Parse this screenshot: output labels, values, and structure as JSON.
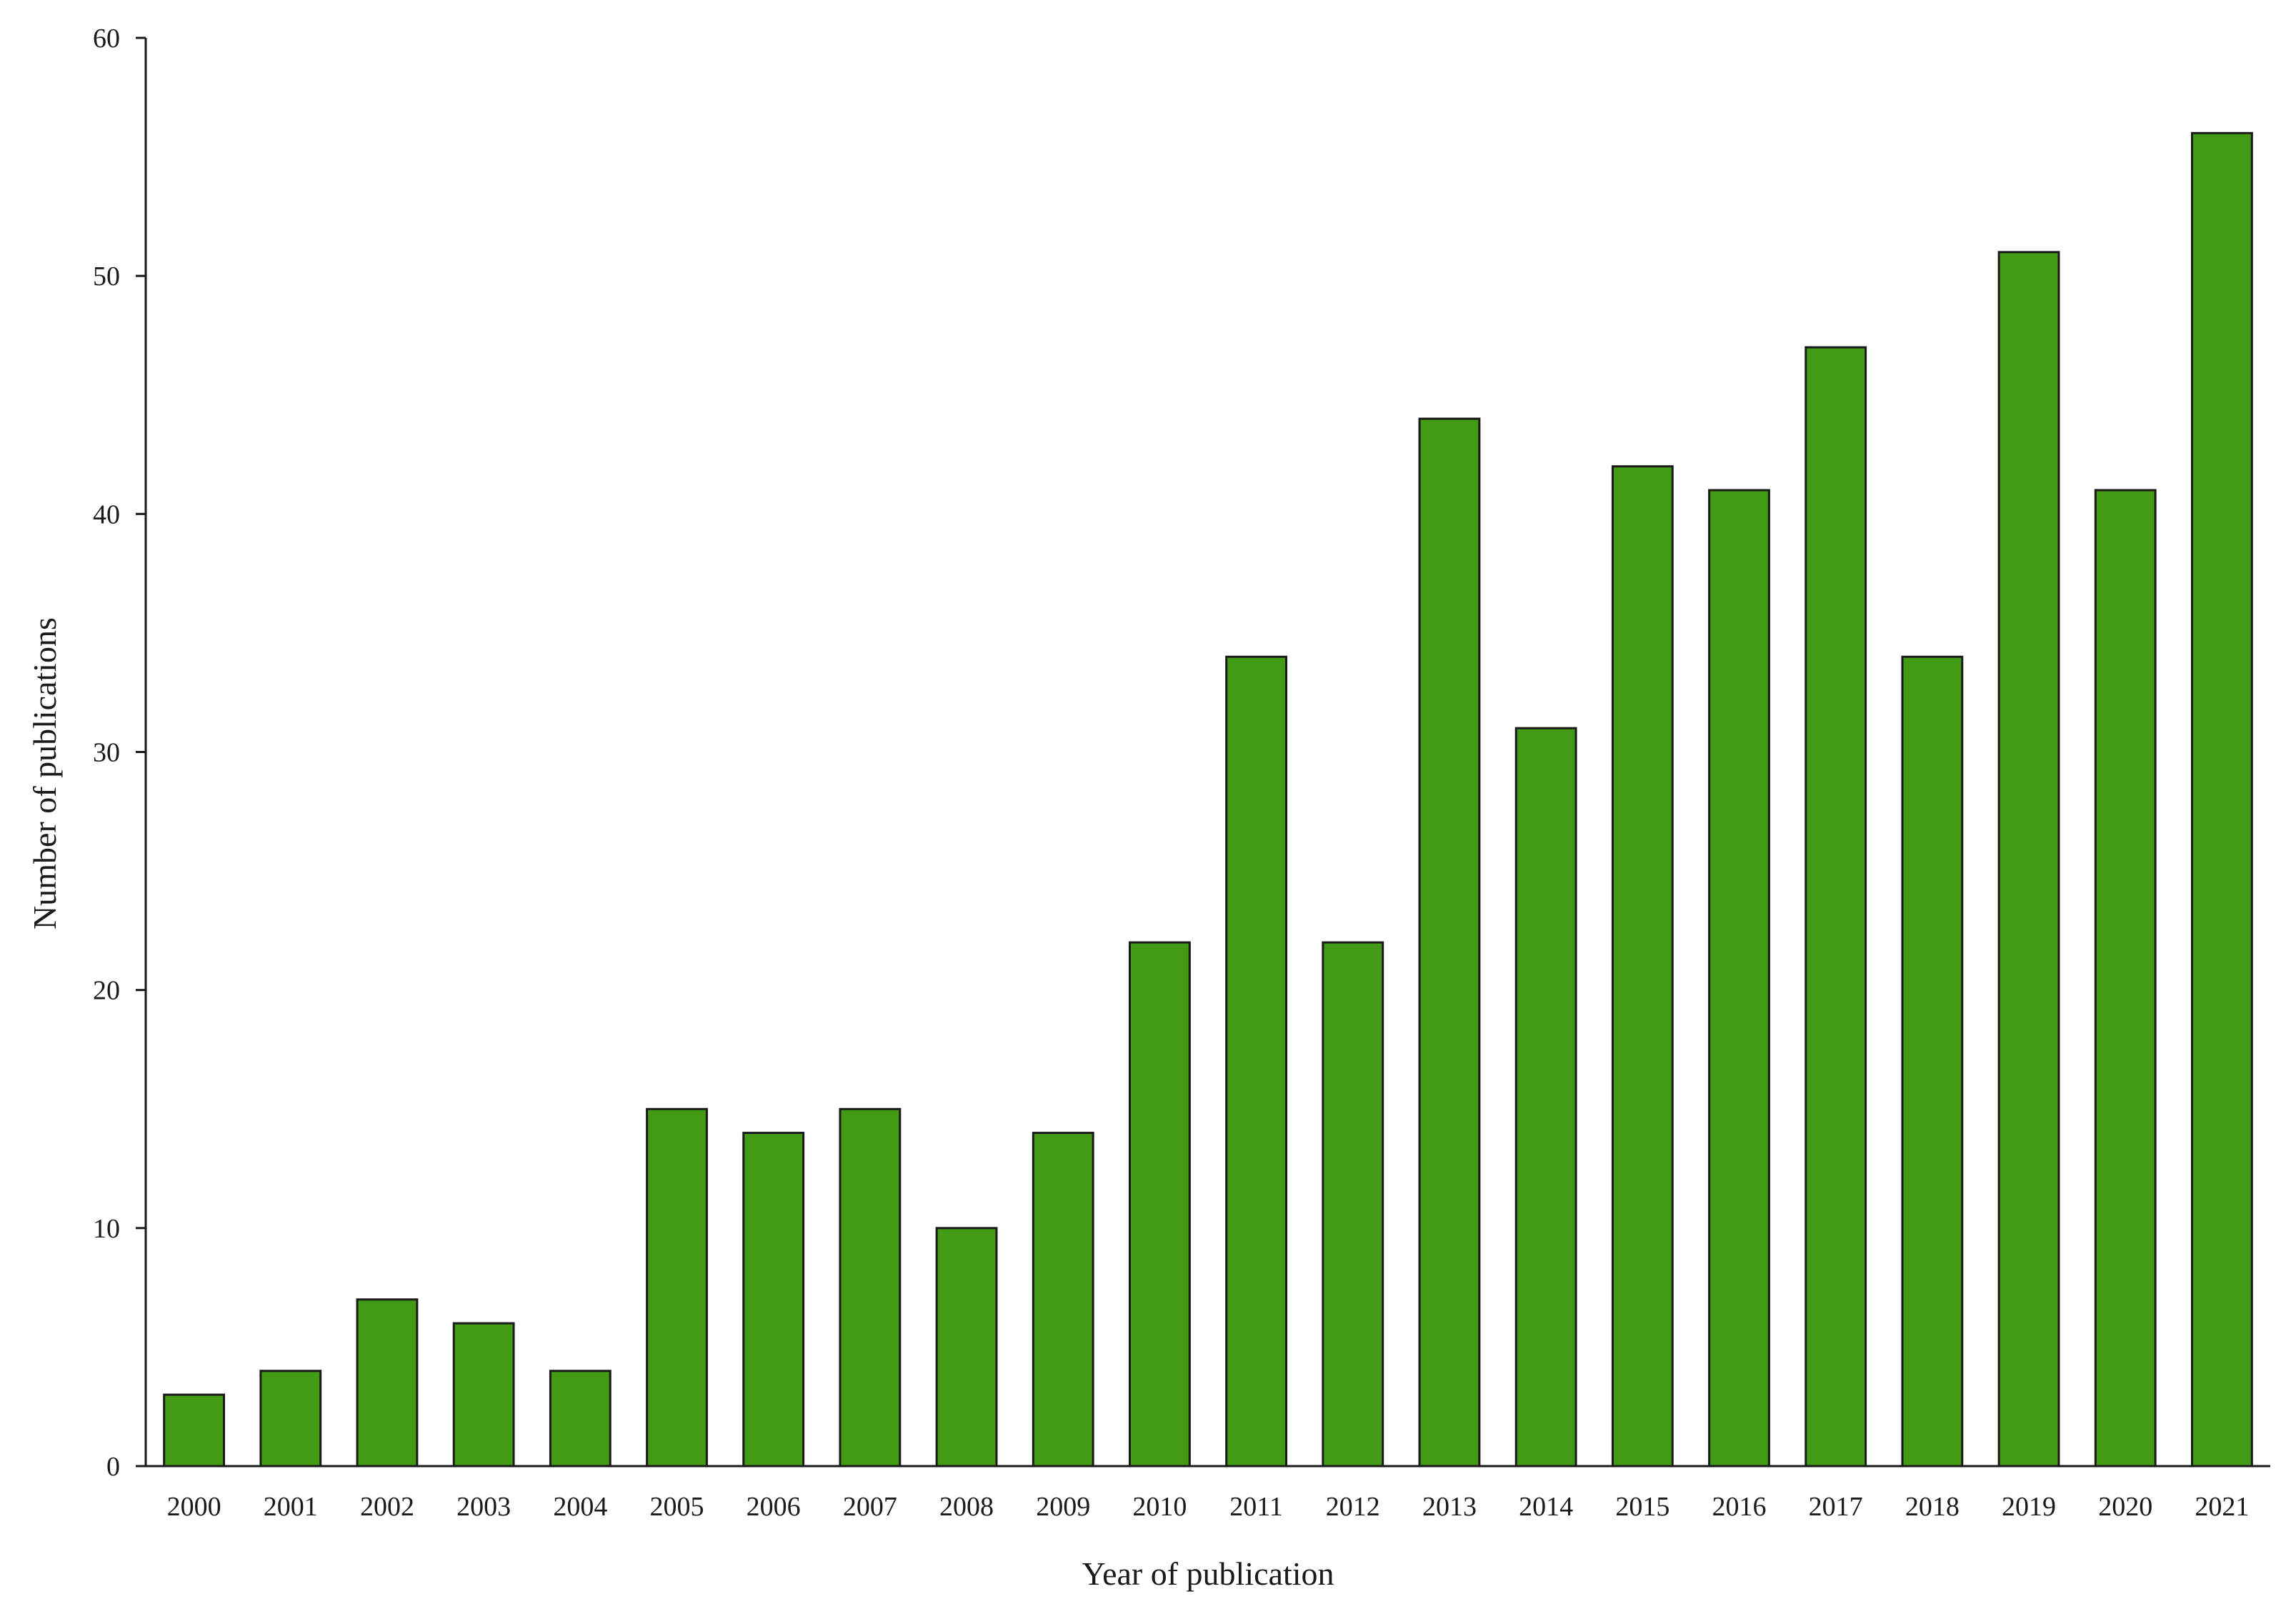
{
  "chart_data": {
    "type": "bar",
    "xlabel": "Year of publication",
    "ylabel": "Number of publications",
    "ylim": [
      0,
      60
    ],
    "yticks": [
      "0",
      "10",
      "20",
      "30",
      "40",
      "50",
      "60"
    ],
    "categories": [
      "2000",
      "2001",
      "2002",
      "2003",
      "2004",
      "2005",
      "2006",
      "2007",
      "2008",
      "2009",
      "2010",
      "2011",
      "2012",
      "2013",
      "2014",
      "2015",
      "2016",
      "2017",
      "2018",
      "2019",
      "2020",
      "2021"
    ],
    "values": [
      3,
      4,
      7,
      6,
      4,
      15,
      14,
      15,
      10,
      14,
      22,
      34,
      22,
      44,
      31,
      42,
      41,
      47,
      34,
      51,
      41,
      56
    ],
    "bar_color": "#439a14",
    "edge_color": "#1a1a1a",
    "grid": false,
    "legend": "none"
  }
}
